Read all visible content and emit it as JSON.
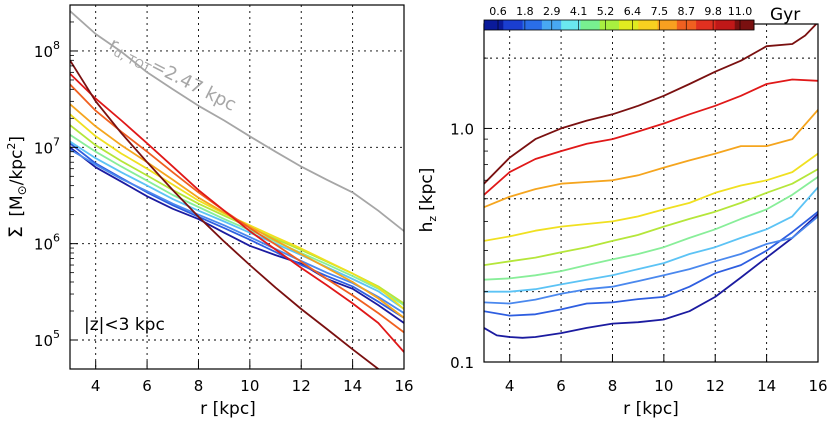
{
  "chart_data": [
    {
      "type": "line",
      "panel": "left",
      "xlabel": "r [kpc]",
      "ylabel": "Σ [M_⊙/kpc²]",
      "ylabel_parts": {
        "sym": "Σ",
        "unit_a": "[M",
        "unit_sub": "⊙",
        "unit_b": "/kpc",
        "unit_sup": "2",
        "unit_c": "]"
      },
      "xlim": [
        3,
        16
      ],
      "ylim": [
        50000,
        300000000
      ],
      "yscale": "log",
      "grid": true,
      "xticks": [
        4,
        6,
        8,
        10,
        12,
        14,
        16
      ],
      "xtick_labels": [
        "4",
        "6",
        "8",
        "10",
        "12",
        "14",
        "16"
      ],
      "yticks": [
        100000,
        1000000,
        10000000,
        100000000
      ],
      "ytick_labels": [
        {
          "base": "10",
          "exp": "5"
        },
        {
          "base": "10",
          "exp": "6"
        },
        {
          "base": "10",
          "exp": "7"
        },
        {
          "base": "10",
          "exp": "8"
        }
      ],
      "annotations": {
        "cut": "|z|<3 kpc",
        "fit": "r",
        "fit_sub": "d, TOT",
        "fit_value": "=2.47 kpc"
      },
      "total_series": {
        "color": "#a6a6a6",
        "x": [
          3,
          4,
          5,
          6,
          7,
          8,
          9,
          10,
          11,
          12,
          13,
          14,
          15,
          16
        ],
        "y": [
          260000000,
          150000000,
          98000000,
          60000000,
          40000000,
          27000000,
          19000000,
          13000000,
          9000000,
          6300000,
          4600000,
          3400000,
          2200000,
          1350000
        ]
      },
      "series": [
        {
          "color": "#1b1ba0",
          "x": [
            3,
            4,
            5,
            6,
            7,
            8,
            9,
            10,
            11,
            12,
            13,
            14,
            15,
            16
          ],
          "y": [
            10000000,
            6200000,
            4400000,
            3100000,
            2300000,
            1800000,
            1300000,
            950000,
            760000,
            620000,
            430000,
            340000,
            230000,
            150000
          ]
        },
        {
          "color": "#2e5ee0",
          "x": [
            3,
            4,
            5,
            6,
            7,
            8,
            9,
            10,
            11,
            12,
            13,
            14,
            15,
            16
          ],
          "y": [
            11000000,
            6800000,
            4800000,
            3400000,
            2500000,
            1900000,
            1450000,
            1100000,
            820000,
            600000,
            460000,
            360000,
            250000,
            170000
          ]
        },
        {
          "color": "#4a88ee",
          "x": [
            3,
            4,
            5,
            6,
            7,
            8,
            9,
            10,
            11,
            12,
            13,
            14,
            15,
            16
          ],
          "y": [
            9500000,
            6600000,
            4700000,
            3500000,
            2600000,
            2000000,
            1550000,
            1170000,
            880000,
            660000,
            500000,
            390000,
            280000,
            190000
          ]
        },
        {
          "color": "#5cc3f5",
          "x": [
            3,
            4,
            5,
            6,
            7,
            8,
            9,
            10,
            11,
            12,
            13,
            14,
            15,
            16
          ],
          "y": [
            11500000,
            7700000,
            5500000,
            4000000,
            2900000,
            2200000,
            1700000,
            1300000,
            1000000,
            760000,
            570000,
            430000,
            320000,
            210000
          ]
        },
        {
          "color": "#88ee99",
          "x": [
            3,
            4,
            5,
            6,
            7,
            8,
            9,
            10,
            11,
            12,
            13,
            14,
            15,
            16
          ],
          "y": [
            13500000,
            9000000,
            6300000,
            4500000,
            3200000,
            2400000,
            1800000,
            1380000,
            1050000,
            800000,
            610000,
            460000,
            340000,
            230000
          ]
        },
        {
          "color": "#b5e63a",
          "x": [
            3,
            4,
            5,
            6,
            7,
            8,
            9,
            10,
            11,
            12,
            13,
            14,
            15,
            16
          ],
          "y": [
            17000000,
            10500000,
            7200000,
            5100000,
            3600000,
            2600000,
            1950000,
            1480000,
            1120000,
            860000,
            650000,
            490000,
            360000,
            240000
          ]
        },
        {
          "color": "#f0e020",
          "x": [
            3,
            4,
            5,
            6,
            7,
            8,
            9,
            10,
            11,
            12,
            13,
            14,
            15,
            16
          ],
          "y": [
            22000000,
            13000000,
            8600000,
            6000000,
            4100000,
            2800000,
            2050000,
            1550000,
            1170000,
            890000,
            660000,
            490000,
            350000,
            210000
          ]
        },
        {
          "color": "#f5a51e",
          "x": [
            3,
            4,
            5,
            6,
            7,
            8,
            9,
            10,
            11,
            12,
            13,
            14,
            15,
            16
          ],
          "y": [
            28000000,
            16500000,
            10500000,
            7000000,
            4600000,
            3000000,
            2100000,
            1500000,
            1080000,
            780000,
            560000,
            400000,
            270000,
            170000
          ]
        },
        {
          "color": "#f06020",
          "x": [
            3,
            4,
            5,
            6,
            7,
            8,
            9,
            10,
            11,
            12,
            13,
            14,
            15,
            16
          ],
          "y": [
            45000000,
            24000000,
            14500000,
            9000000,
            5500000,
            3400000,
            2200000,
            1450000,
            980000,
            650000,
            430000,
            290000,
            190000,
            120000
          ]
        },
        {
          "color": "#e01818",
          "x": [
            3,
            4,
            5,
            6,
            7,
            8,
            9,
            10,
            11,
            12,
            13,
            14,
            15,
            16
          ],
          "y": [
            58000000,
            32000000,
            19000000,
            11000000,
            6300000,
            3600000,
            2200000,
            1350000,
            870000,
            560000,
            370000,
            240000,
            150000,
            75000
          ]
        },
        {
          "color": "#7a1010",
          "x": [
            3,
            4,
            5,
            6,
            7,
            8,
            9,
            10,
            11,
            12,
            13,
            14,
            15
          ],
          "y": [
            80000000,
            30000000,
            14000000,
            7000000,
            3600000,
            1900000,
            1050000,
            600000,
            350000,
            210000,
            130000,
            80000,
            50000
          ]
        }
      ]
    },
    {
      "type": "line",
      "panel": "right",
      "xlabel": "r [kpc]",
      "ylabel": "h_z [kpc]",
      "ylabel_parts": {
        "sym": "h",
        "sub": "z",
        "unit": "[kpc]"
      },
      "xlim": [
        3,
        16
      ],
      "ylim": [
        0.1,
        2.8
      ],
      "yscale": "log",
      "grid": true,
      "xticks": [
        4,
        6,
        8,
        10,
        12,
        14,
        16
      ],
      "xtick_labels": [
        "4",
        "6",
        "8",
        "10",
        "12",
        "14",
        "16"
      ],
      "yticks": [
        0.1,
        1.0
      ],
      "ytick_labels": [
        "0.1",
        "1.0"
      ],
      "minor_grid_y": [
        0.2,
        0.5,
        2.0
      ],
      "series": [
        {
          "color": "#1b1ba0",
          "x": [
            3,
            3.5,
            4,
            4.5,
            5,
            6,
            7,
            8,
            9,
            10,
            11,
            12,
            13,
            14,
            15,
            16
          ],
          "y": [
            0.14,
            0.13,
            0.128,
            0.127,
            0.128,
            0.133,
            0.14,
            0.146,
            0.148,
            0.152,
            0.165,
            0.19,
            0.23,
            0.28,
            0.34,
            0.43
          ]
        },
        {
          "color": "#2e5ee0",
          "x": [
            3,
            4,
            5,
            6,
            7,
            8,
            9,
            10,
            11,
            12,
            13,
            14,
            15,
            16
          ],
          "y": [
            0.165,
            0.158,
            0.16,
            0.168,
            0.178,
            0.18,
            0.186,
            0.19,
            0.21,
            0.24,
            0.26,
            0.3,
            0.36,
            0.44
          ]
        },
        {
          "color": "#4a88ee",
          "x": [
            3,
            4,
            5,
            6,
            7,
            8,
            9,
            10,
            11,
            12,
            13,
            14,
            15,
            16
          ],
          "y": [
            0.18,
            0.178,
            0.185,
            0.196,
            0.205,
            0.21,
            0.222,
            0.235,
            0.25,
            0.27,
            0.29,
            0.32,
            0.34,
            0.42
          ]
        },
        {
          "color": "#5cc3f5",
          "x": [
            3,
            4,
            5,
            6,
            7,
            8,
            9,
            10,
            11,
            12,
            13,
            14,
            15,
            16
          ],
          "y": [
            0.2,
            0.2,
            0.205,
            0.215,
            0.225,
            0.235,
            0.25,
            0.265,
            0.29,
            0.31,
            0.34,
            0.37,
            0.42,
            0.56
          ]
        },
        {
          "color": "#88ee99",
          "x": [
            3,
            4,
            5,
            6,
            7,
            8,
            9,
            10,
            11,
            12,
            13,
            14,
            15,
            16
          ],
          "y": [
            0.225,
            0.228,
            0.235,
            0.245,
            0.26,
            0.275,
            0.29,
            0.31,
            0.34,
            0.37,
            0.41,
            0.45,
            0.52,
            0.62
          ]
        },
        {
          "color": "#b5e63a",
          "x": [
            3,
            4,
            5,
            6,
            7,
            8,
            9,
            10,
            11,
            12,
            13,
            14,
            15,
            16
          ],
          "y": [
            0.26,
            0.27,
            0.28,
            0.295,
            0.31,
            0.33,
            0.35,
            0.38,
            0.41,
            0.44,
            0.48,
            0.53,
            0.58,
            0.67
          ]
        },
        {
          "color": "#f0e020",
          "x": [
            3,
            4,
            5,
            6,
            7,
            8,
            9,
            10,
            11,
            12,
            13,
            14,
            15,
            16
          ],
          "y": [
            0.33,
            0.345,
            0.365,
            0.38,
            0.39,
            0.4,
            0.42,
            0.45,
            0.48,
            0.53,
            0.57,
            0.6,
            0.65,
            0.78
          ]
        },
        {
          "color": "#f5a51e",
          "x": [
            3,
            4,
            5,
            6,
            7,
            8,
            9,
            10,
            11,
            12,
            13,
            14,
            15,
            16
          ],
          "y": [
            0.46,
            0.51,
            0.55,
            0.58,
            0.59,
            0.6,
            0.63,
            0.68,
            0.73,
            0.78,
            0.84,
            0.84,
            0.9,
            1.2
          ]
        },
        {
          "color": "#e01818",
          "x": [
            3,
            4,
            5,
            6,
            7,
            8,
            9,
            10,
            11,
            12,
            13,
            14,
            15,
            16
          ],
          "y": [
            0.52,
            0.65,
            0.74,
            0.8,
            0.86,
            0.9,
            0.97,
            1.05,
            1.15,
            1.25,
            1.38,
            1.55,
            1.62,
            1.6
          ]
        },
        {
          "color": "#7a1010",
          "x": [
            3,
            4,
            5,
            6,
            7,
            8,
            9,
            10,
            11,
            12,
            13,
            14,
            15,
            15.5,
            16
          ],
          "y": [
            0.58,
            0.75,
            0.9,
            1.0,
            1.08,
            1.15,
            1.25,
            1.38,
            1.55,
            1.75,
            1.95,
            2.25,
            2.3,
            2.5,
            2.85
          ]
        }
      ],
      "colorbar": {
        "label": "Gyr",
        "ticks": [
          "0.6",
          "1.8",
          "2.9",
          "4.1",
          "5.2",
          "6.4",
          "7.5",
          "8.7",
          "9.8",
          "11.0"
        ],
        "colors": [
          "#0a1a9a",
          "#1a3ed0",
          "#2a6ee8",
          "#48a8f2",
          "#6ae8ee",
          "#78f090",
          "#a8f040",
          "#e0ec20",
          "#f8d020",
          "#f8a020",
          "#f06020",
          "#e03020",
          "#c01818",
          "#7a1010"
        ]
      }
    }
  ]
}
